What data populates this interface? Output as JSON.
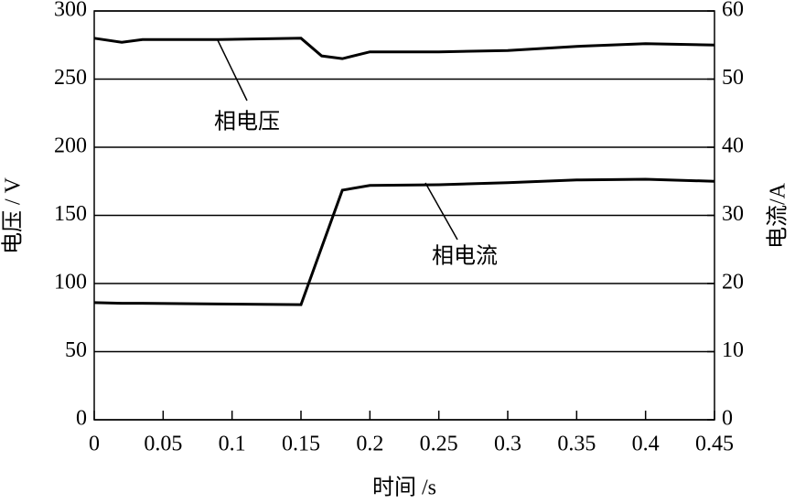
{
  "chart_data": {
    "type": "line",
    "x": [
      0,
      0.02,
      0.035,
      0.09,
      0.15,
      0.165,
      0.18,
      0.2,
      0.25,
      0.3,
      0.35,
      0.4,
      0.45
    ],
    "series": [
      {
        "name": "相电压",
        "color": "#000000",
        "values": [
          280,
          277,
          279,
          279,
          280,
          267,
          265,
          270,
          270,
          271,
          274,
          276,
          275
        ]
      },
      {
        "name": "相电流",
        "color": "#000000",
        "axis": "y2",
        "values": [
          17.2,
          17.1,
          17.1,
          17.0,
          16.9,
          25.3,
          33.7,
          34.4,
          34.5,
          34.8,
          35.2,
          35.3,
          35.0
        ]
      }
    ],
    "xlabel": "时间 /s",
    "ylabel": "电压 / V",
    "y2label": "电流/A",
    "xlim": [
      0,
      0.45
    ],
    "xticks": [
      0,
      0.05,
      0.1,
      0.15,
      0.2,
      0.25,
      0.3,
      0.35,
      0.4,
      0.45
    ],
    "ylim": [
      0,
      300
    ],
    "yticks": [
      0,
      50,
      100,
      150,
      200,
      250,
      300
    ],
    "y2lim": [
      0,
      60
    ],
    "y2ticks": [
      0,
      10,
      20,
      30,
      40,
      50,
      60
    ],
    "grid": true
  }
}
